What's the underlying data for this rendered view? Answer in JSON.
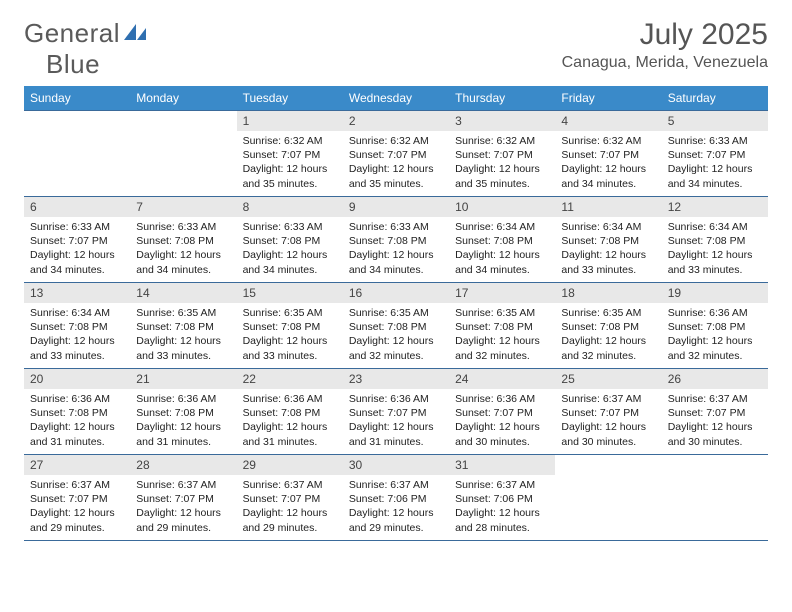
{
  "logo": {
    "word1": "General",
    "word2": "Blue"
  },
  "title": {
    "month": "July 2025",
    "location": "Canagua, Merida, Venezuela"
  },
  "colors": {
    "header_bg": "#3a8ac9",
    "header_fg": "#ffffff",
    "daynum_bg": "#e8e8e8",
    "rule": "#3a6a9a",
    "logo_gray": "#5a5a5a",
    "logo_blue": "#2f6fb0"
  },
  "days_of_week": [
    "Sunday",
    "Monday",
    "Tuesday",
    "Wednesday",
    "Thursday",
    "Friday",
    "Saturday"
  ],
  "weeks": [
    [
      null,
      null,
      {
        "n": "1",
        "sr": "6:32 AM",
        "ss": "7:07 PM",
        "dl": "12 hours and 35 minutes."
      },
      {
        "n": "2",
        "sr": "6:32 AM",
        "ss": "7:07 PM",
        "dl": "12 hours and 35 minutes."
      },
      {
        "n": "3",
        "sr": "6:32 AM",
        "ss": "7:07 PM",
        "dl": "12 hours and 35 minutes."
      },
      {
        "n": "4",
        "sr": "6:32 AM",
        "ss": "7:07 PM",
        "dl": "12 hours and 34 minutes."
      },
      {
        "n": "5",
        "sr": "6:33 AM",
        "ss": "7:07 PM",
        "dl": "12 hours and 34 minutes."
      }
    ],
    [
      {
        "n": "6",
        "sr": "6:33 AM",
        "ss": "7:07 PM",
        "dl": "12 hours and 34 minutes."
      },
      {
        "n": "7",
        "sr": "6:33 AM",
        "ss": "7:08 PM",
        "dl": "12 hours and 34 minutes."
      },
      {
        "n": "8",
        "sr": "6:33 AM",
        "ss": "7:08 PM",
        "dl": "12 hours and 34 minutes."
      },
      {
        "n": "9",
        "sr": "6:33 AM",
        "ss": "7:08 PM",
        "dl": "12 hours and 34 minutes."
      },
      {
        "n": "10",
        "sr": "6:34 AM",
        "ss": "7:08 PM",
        "dl": "12 hours and 34 minutes."
      },
      {
        "n": "11",
        "sr": "6:34 AM",
        "ss": "7:08 PM",
        "dl": "12 hours and 33 minutes."
      },
      {
        "n": "12",
        "sr": "6:34 AM",
        "ss": "7:08 PM",
        "dl": "12 hours and 33 minutes."
      }
    ],
    [
      {
        "n": "13",
        "sr": "6:34 AM",
        "ss": "7:08 PM",
        "dl": "12 hours and 33 minutes."
      },
      {
        "n": "14",
        "sr": "6:35 AM",
        "ss": "7:08 PM",
        "dl": "12 hours and 33 minutes."
      },
      {
        "n": "15",
        "sr": "6:35 AM",
        "ss": "7:08 PM",
        "dl": "12 hours and 33 minutes."
      },
      {
        "n": "16",
        "sr": "6:35 AM",
        "ss": "7:08 PM",
        "dl": "12 hours and 32 minutes."
      },
      {
        "n": "17",
        "sr": "6:35 AM",
        "ss": "7:08 PM",
        "dl": "12 hours and 32 minutes."
      },
      {
        "n": "18",
        "sr": "6:35 AM",
        "ss": "7:08 PM",
        "dl": "12 hours and 32 minutes."
      },
      {
        "n": "19",
        "sr": "6:36 AM",
        "ss": "7:08 PM",
        "dl": "12 hours and 32 minutes."
      }
    ],
    [
      {
        "n": "20",
        "sr": "6:36 AM",
        "ss": "7:08 PM",
        "dl": "12 hours and 31 minutes."
      },
      {
        "n": "21",
        "sr": "6:36 AM",
        "ss": "7:08 PM",
        "dl": "12 hours and 31 minutes."
      },
      {
        "n": "22",
        "sr": "6:36 AM",
        "ss": "7:08 PM",
        "dl": "12 hours and 31 minutes."
      },
      {
        "n": "23",
        "sr": "6:36 AM",
        "ss": "7:07 PM",
        "dl": "12 hours and 31 minutes."
      },
      {
        "n": "24",
        "sr": "6:36 AM",
        "ss": "7:07 PM",
        "dl": "12 hours and 30 minutes."
      },
      {
        "n": "25",
        "sr": "6:37 AM",
        "ss": "7:07 PM",
        "dl": "12 hours and 30 minutes."
      },
      {
        "n": "26",
        "sr": "6:37 AM",
        "ss": "7:07 PM",
        "dl": "12 hours and 30 minutes."
      }
    ],
    [
      {
        "n": "27",
        "sr": "6:37 AM",
        "ss": "7:07 PM",
        "dl": "12 hours and 29 minutes."
      },
      {
        "n": "28",
        "sr": "6:37 AM",
        "ss": "7:07 PM",
        "dl": "12 hours and 29 minutes."
      },
      {
        "n": "29",
        "sr": "6:37 AM",
        "ss": "7:07 PM",
        "dl": "12 hours and 29 minutes."
      },
      {
        "n": "30",
        "sr": "6:37 AM",
        "ss": "7:06 PM",
        "dl": "12 hours and 29 minutes."
      },
      {
        "n": "31",
        "sr": "6:37 AM",
        "ss": "7:06 PM",
        "dl": "12 hours and 28 minutes."
      },
      null,
      null
    ]
  ],
  "labels": {
    "sunrise": "Sunrise:",
    "sunset": "Sunset:",
    "daylight": "Daylight:"
  }
}
